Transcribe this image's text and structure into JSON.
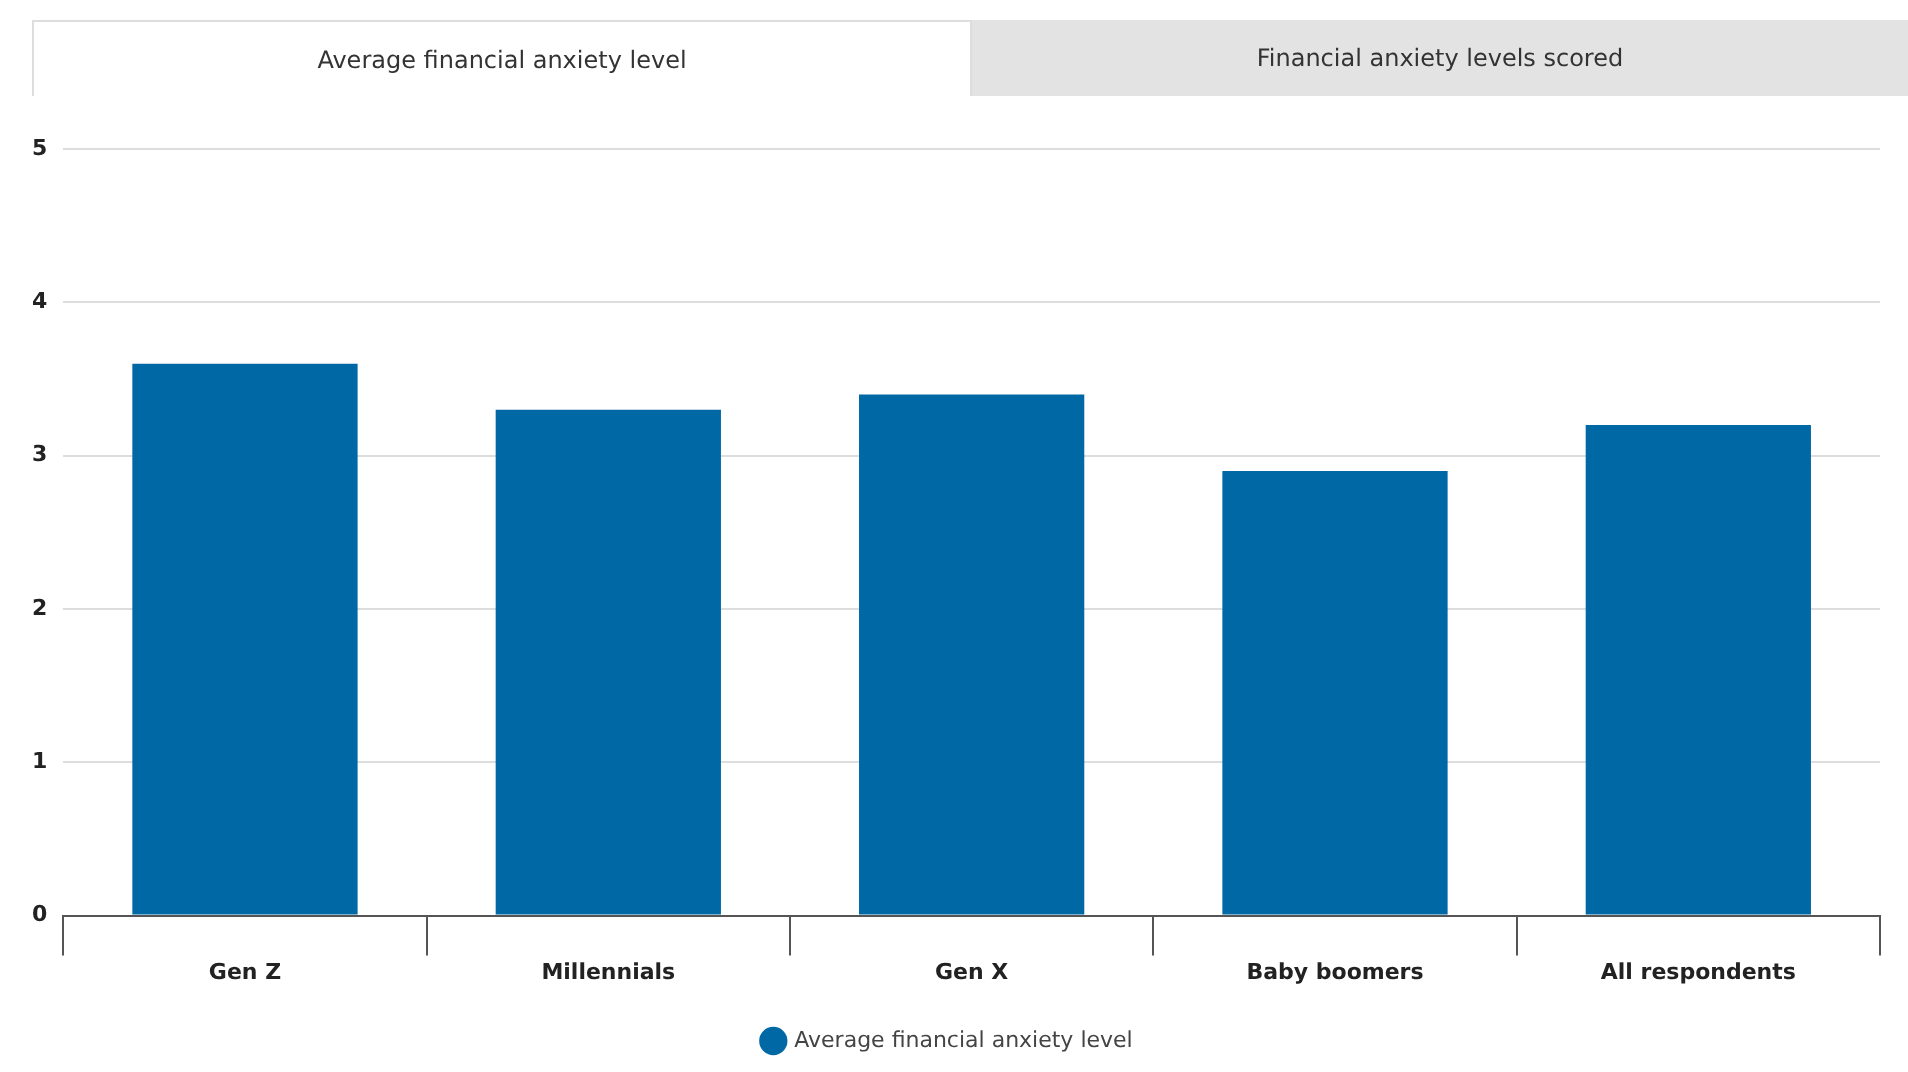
{
  "chart_data": {
    "type": "bar",
    "title": "Average financial anxiety level",
    "annotations": [
      "Financial anxiety levels scored"
    ],
    "categories": [
      "Gen Z",
      "Millennials",
      "Gen X",
      "Baby boomers",
      "All respondents"
    ],
    "series": [
      {
        "name": "Average financial anxiety level",
        "color": "#0068a5",
        "values": [
          3.6,
          3.3,
          3.4,
          2.9,
          3.2
        ]
      }
    ],
    "ylim": [
      0,
      5
    ],
    "yticks": [
      0,
      1,
      2,
      3,
      4,
      5
    ],
    "grid": "y",
    "legend": "bottom"
  }
}
